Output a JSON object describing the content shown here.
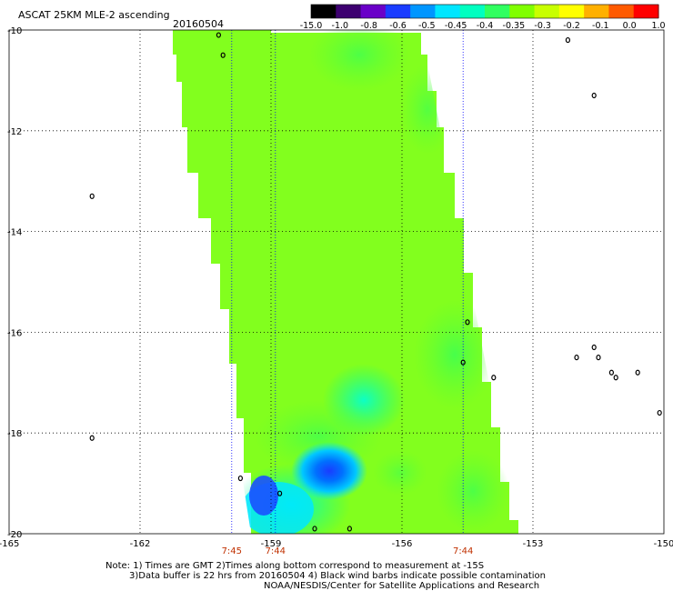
{
  "header": {
    "title": "ASCAT 25KM MLE-2 ascending",
    "date": "20160504"
  },
  "colorbar": {
    "colors": [
      "#000000",
      "#3d0070",
      "#6a00c8",
      "#1a3cff",
      "#0096ff",
      "#00e6ff",
      "#00ffc0",
      "#30ff60",
      "#80ff00",
      "#c8ff00",
      "#ffff00",
      "#ffb000",
      "#ff5a00",
      "#ff0000"
    ],
    "labels": [
      "-15.0",
      "-1.0",
      "-0.8",
      "-0.6",
      "-0.5",
      "-0.45",
      "-0.4",
      "-0.35",
      "-0.3",
      "-0.2",
      "-0.1",
      "0.0",
      "1.0"
    ]
  },
  "notes": {
    "line1": "Note: 1) Times are GMT 2)Times along bottom correspond to measurement at -15S",
    "line2": "3)Data buffer is 22 hrs from 20160504 4) Black wind barbs indicate possible contamination",
    "line3": "NOAA/NESDIS/Center for Satellite Applications and Research"
  },
  "chart_data": {
    "type": "heatmap",
    "title": "ASCAT 25KM MLE-2 ascending",
    "date": "20160504",
    "xlim": [
      -165,
      -150
    ],
    "ylim": [
      -20,
      -10
    ],
    "x_ticks": [
      "-165",
      "-162",
      "-159",
      "-156",
      "-153",
      "-150"
    ],
    "y_ticks": [
      "-10",
      "-12",
      "-14",
      "-16",
      "-18",
      "-20"
    ],
    "grid": "dotted",
    "swath_corners": {
      "top_left": [
        -160.7,
        -10
      ],
      "top_right": [
        -156.1,
        -10
      ],
      "bottom_left": [
        -159.4,
        -20
      ],
      "bottom_right": [
        -153.2,
        -20
      ]
    },
    "dominant_value": "-0.3",
    "low_region": {
      "lon": -158.2,
      "lat": -18.8,
      "value": "-0.6"
    },
    "pass_times": [
      {
        "lon": -159.9,
        "time": "7:45"
      },
      {
        "lon": -158.9,
        "time": "7:44"
      },
      {
        "lon": -154.6,
        "time": "7:44"
      }
    ],
    "islands": [
      {
        "lon": -160.2,
        "lat": -10.1
      },
      {
        "lon": -160.1,
        "lat": -10.5
      },
      {
        "lon": -152.2,
        "lat": -10.2
      },
      {
        "lon": -151.6,
        "lat": -11.3
      },
      {
        "lon": -163.1,
        "lat": -13.3
      },
      {
        "lon": -154.5,
        "lat": -15.8
      },
      {
        "lon": -154.6,
        "lat": -16.6
      },
      {
        "lon": -153.9,
        "lat": -16.9
      },
      {
        "lon": -152.0,
        "lat": -16.5
      },
      {
        "lon": -151.6,
        "lat": -16.3
      },
      {
        "lon": -151.5,
        "lat": -16.5
      },
      {
        "lon": -151.2,
        "lat": -16.8
      },
      {
        "lon": -151.1,
        "lat": -16.9
      },
      {
        "lon": -150.6,
        "lat": -16.8
      },
      {
        "lon": -150.1,
        "lat": -17.6
      },
      {
        "lon": -163.1,
        "lat": -18.1
      },
      {
        "lon": -159.7,
        "lat": -18.9
      },
      {
        "lon": -158.8,
        "lat": -19.2
      },
      {
        "lon": -158.0,
        "lat": -19.9
      },
      {
        "lon": -157.2,
        "lat": -19.9
      }
    ]
  }
}
